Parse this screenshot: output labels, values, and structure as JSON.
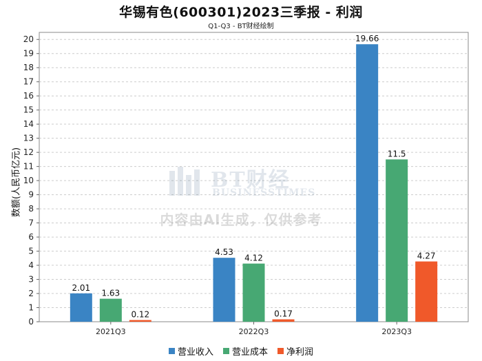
{
  "chart_data": {
    "type": "bar",
    "title": "华锡有色(600301)2023三季报 - 利润",
    "subtitle": "Q1-Q3 - BT财经绘制",
    "xlabel": "",
    "ylabel": "数额(人民币亿元)",
    "ylim": [
      0,
      20.5
    ],
    "yticks": [
      0,
      1,
      2,
      3,
      4,
      5,
      6,
      7,
      8,
      9,
      10,
      11,
      12,
      13,
      14,
      15,
      16,
      17,
      18,
      19,
      20
    ],
    "grid": true,
    "legend_position": "bottom-center",
    "categories": [
      "2021Q3",
      "2022Q3",
      "2023Q3"
    ],
    "series": [
      {
        "name": "营业收入",
        "color": "#3a84c4",
        "values": [
          2.01,
          4.53,
          19.66
        ],
        "labels": [
          "2.01",
          "4.53",
          "19.66"
        ]
      },
      {
        "name": "营业成本",
        "color": "#47a873",
        "values": [
          1.63,
          4.12,
          11.5
        ],
        "labels": [
          "1.63",
          "4.12",
          "11.5"
        ]
      },
      {
        "name": "净利润",
        "color": "#f0592a",
        "values": [
          0.12,
          0.17,
          4.27
        ],
        "labels": [
          "0.12",
          "0.17",
          "4.27"
        ]
      }
    ]
  },
  "watermark": {
    "brand": "BT财经",
    "brand_sub": "BUSINESSTIMES",
    "note": "内容由AI生成，仅供参考"
  }
}
